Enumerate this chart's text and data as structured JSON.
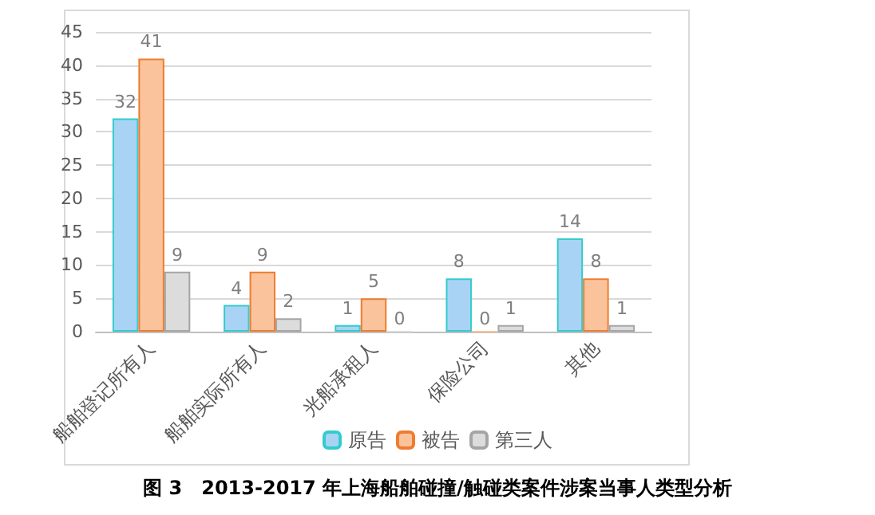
{
  "chart_data": {
    "type": "bar",
    "title": "图 3　2013-2017 年上海船舶碰撞/触碰类案件涉案当事人类型分析",
    "categories": [
      "船舶登记所有人",
      "船舶实际所有人",
      "光船承租人",
      "保险公司",
      "其他"
    ],
    "series": [
      {
        "name": "原告",
        "color": "#a9d3f5",
        "values": [
          32,
          4,
          1,
          8,
          14
        ]
      },
      {
        "name": "被告",
        "color": "#fbc39b",
        "values": [
          41,
          9,
          5,
          0,
          8
        ]
      },
      {
        "name": "第三人",
        "color": "#dcdcdc",
        "values": [
          9,
          2,
          0,
          1,
          1
        ]
      }
    ],
    "ylim": [
      0,
      45
    ],
    "yticks": [
      0,
      5,
      10,
      15,
      20,
      25,
      30,
      35,
      40,
      45
    ],
    "grid": "y",
    "legend": "bottom",
    "data_labels": true
  }
}
